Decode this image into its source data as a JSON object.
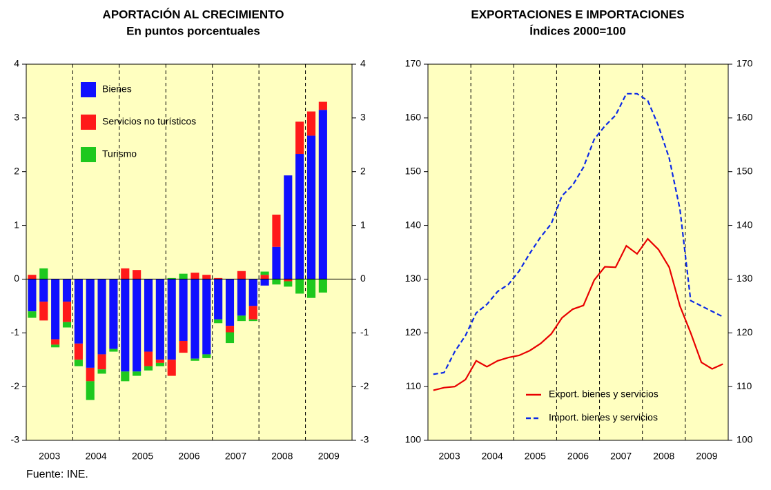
{
  "chart_data": [
    {
      "type": "bar",
      "title": "APORTACIÓN AL CRECIMIENTO",
      "subtitle": "En puntos porcentuales",
      "categories": [
        null,
        null,
        null,
        null,
        null,
        null,
        null,
        null,
        null,
        null,
        null,
        null,
        null,
        null,
        null,
        null,
        null,
        null,
        null,
        null,
        null,
        null,
        null,
        null,
        null,
        null
      ],
      "year_labels": [
        "2003",
        "2004",
        "2005",
        "2006",
        "2007",
        "2008",
        "2009"
      ],
      "series": [
        {
          "name": "Bienes",
          "color": "#1010ff",
          "values": [
            -0.6,
            -0.42,
            -1.12,
            -0.42,
            -1.2,
            -1.65,
            -1.4,
            -1.3,
            -1.72,
            -1.72,
            -1.35,
            -1.5,
            -1.5,
            -1.15,
            -1.48,
            -1.4,
            -0.75,
            -0.87,
            -0.68,
            -0.5,
            -0.12,
            0.6,
            1.93,
            2.33,
            2.67,
            3.15
          ]
        },
        {
          "name": "Servicios no turísticos",
          "color": "#ff1a1a",
          "values": [
            0.08,
            -0.35,
            -0.1,
            -0.38,
            -0.3,
            -0.25,
            -0.28,
            0,
            0.2,
            0.17,
            -0.27,
            -0.06,
            -0.3,
            -0.22,
            0.12,
            0.08,
            0.02,
            -0.12,
            0.15,
            -0.25,
            0.08,
            0.6,
            -0.04,
            0.6,
            0.45,
            0.15
          ]
        },
        {
          "name": "Turismo",
          "color": "#1ec81e",
          "values": [
            -0.12,
            0.2,
            -0.05,
            -0.1,
            -0.12,
            -0.35,
            -0.08,
            -0.05,
            -0.18,
            -0.08,
            -0.08,
            -0.06,
            0.02,
            0.1,
            -0.04,
            -0.07,
            -0.07,
            -0.2,
            -0.1,
            -0.03,
            0.06,
            -0.1,
            -0.1,
            -0.27,
            -0.35,
            -0.25
          ]
        }
      ],
      "ylim": [
        -3,
        4
      ],
      "yticks": [
        -3,
        -2,
        -1,
        0,
        1,
        2,
        3,
        4
      ]
    },
    {
      "type": "line",
      "title": "EXPORTACIONES E IMPORTACIONES",
      "subtitle": "Índices 2000=100",
      "x": [
        2003.125,
        2003.375,
        2003.625,
        2003.875,
        2004.125,
        2004.375,
        2004.625,
        2004.875,
        2005.125,
        2005.375,
        2005.625,
        2005.875,
        2006.125,
        2006.375,
        2006.625,
        2006.875,
        2007.125,
        2007.375,
        2007.625,
        2007.875,
        2008.125,
        2008.375,
        2008.625,
        2008.875,
        2009.125,
        2009.375,
        2009.625,
        2009.875
      ],
      "xlim": [
        2003,
        2010
      ],
      "year_labels": [
        "2003",
        "2004",
        "2005",
        "2006",
        "2007",
        "2008",
        "2009"
      ],
      "series": [
        {
          "name": "Export. bienes y servicios",
          "color": "#e80000",
          "dash": false,
          "values": [
            109.3,
            109.8,
            110,
            111.3,
            114.8,
            113.7,
            114.8,
            115.4,
            115.8,
            116.7,
            118,
            119.8,
            122.8,
            124.4,
            125.1,
            129.8,
            132.3,
            132.2,
            136.2,
            134.7,
            137.5,
            135.5,
            132.2,
            125,
            120,
            114.5,
            113.3,
            114.2
          ]
        },
        {
          "name": "Import. bienes y servicios",
          "color": "#0a28e6",
          "dash": true,
          "values": [
            112.3,
            112.6,
            116.5,
            119.5,
            123.7,
            125.3,
            127.7,
            129,
            131.5,
            134.8,
            137.8,
            140.3,
            145.5,
            147.5,
            150.8,
            156,
            158.5,
            160.5,
            164.5,
            164.5,
            163.2,
            158.5,
            152.5,
            143,
            126,
            125,
            124,
            123
          ]
        }
      ],
      "ylim": [
        100,
        170
      ],
      "yticks": [
        100,
        110,
        120,
        130,
        140,
        150,
        160,
        170
      ]
    }
  ],
  "source": "Fuente: INE."
}
